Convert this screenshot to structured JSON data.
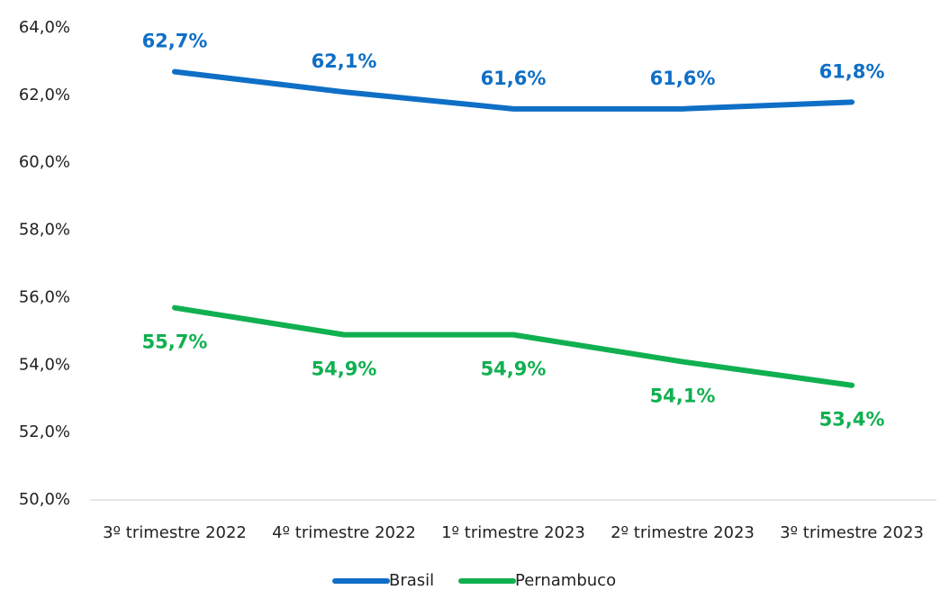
{
  "chart_data": {
    "type": "line",
    "categories": [
      "3º trimestre 2022",
      "4º trimestre 2022",
      "1º trimestre 2023",
      "2º trimestre 2023",
      "3º trimestre 2023"
    ],
    "series": [
      {
        "name": "Brasil",
        "color": "#0f6fc6",
        "values": [
          62.7,
          62.1,
          61.6,
          61.6,
          61.8
        ],
        "value_labels": [
          "62,7%",
          "62,1%",
          "61,6%",
          "61,6%",
          "61,8%"
        ]
      },
      {
        "name": "Pernambuco",
        "color": "#10b050",
        "values": [
          55.7,
          54.9,
          54.9,
          54.1,
          53.4
        ],
        "value_labels": [
          "55,7%",
          "54,9%",
          "54,9%",
          "54,1%",
          "53,4%"
        ]
      }
    ],
    "ylim": [
      50,
      64
    ],
    "yticks": [
      {
        "value": 50,
        "label": "50,0%"
      },
      {
        "value": 52,
        "label": "52,0%"
      },
      {
        "value": 54,
        "label": "54,0%"
      },
      {
        "value": 56,
        "label": "56,0%"
      },
      {
        "value": 58,
        "label": "58,0%"
      },
      {
        "value": 60,
        "label": "60,0%"
      },
      {
        "value": 62,
        "label": "62,0%"
      },
      {
        "value": 64,
        "label": "64,0%"
      }
    ],
    "grid": false,
    "legend": "bottom"
  }
}
